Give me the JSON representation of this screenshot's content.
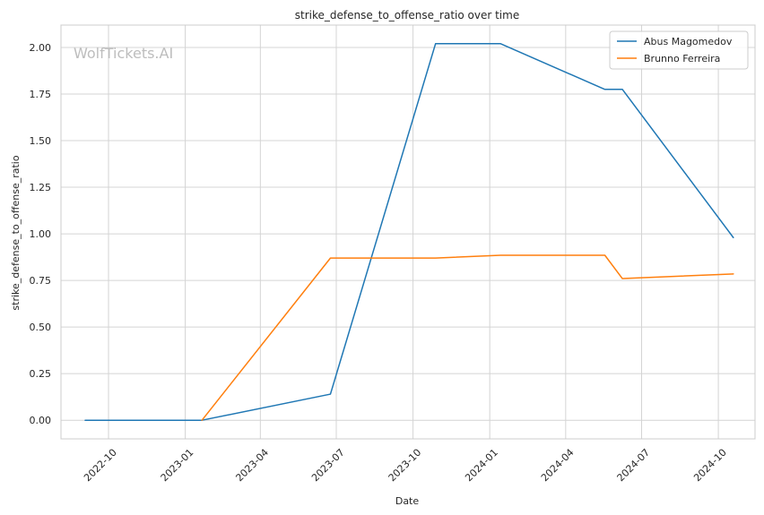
{
  "chart_data": {
    "type": "line",
    "title": "strike_defense_to_offense_ratio over time",
    "xlabel": "Date",
    "ylabel": "strike_defense_to_offense_ratio",
    "watermark": "WolfTickets.AI",
    "x_tick_labels": [
      "2022-10",
      "2023-01",
      "2023-04",
      "2023-07",
      "2023-10",
      "2024-01",
      "2024-04",
      "2024-07",
      "2024-10"
    ],
    "x_ticks": [
      "2022-10-01",
      "2023-01-01",
      "2023-04-01",
      "2023-07-01",
      "2023-10-01",
      "2024-01-01",
      "2024-04-01",
      "2024-07-01",
      "2024-10-01"
    ],
    "y_tick_labels": [
      "0.00",
      "0.25",
      "0.50",
      "0.75",
      "1.00",
      "1.25",
      "1.50",
      "1.75",
      "2.00"
    ],
    "y_ticks": [
      0,
      0.25,
      0.5,
      0.75,
      1.0,
      1.25,
      1.5,
      1.75,
      2.0
    ],
    "xlim": [
      "2022-08-05",
      "2024-11-14"
    ],
    "ylim": [
      -0.1,
      2.12
    ],
    "grid": true,
    "legend_position": "top-right",
    "series": [
      {
        "name": "Abus Magomedov",
        "color": "#1f77b4",
        "points": [
          {
            "x": "2022-09-03",
            "y": 0.0
          },
          {
            "x": "2023-01-21",
            "y": 0.0
          },
          {
            "x": "2023-06-24",
            "y": 0.14
          },
          {
            "x": "2023-10-28",
            "y": 2.02
          },
          {
            "x": "2024-01-14",
            "y": 2.02
          },
          {
            "x": "2024-05-18",
            "y": 1.775
          },
          {
            "x": "2024-06-08",
            "y": 1.775
          },
          {
            "x": "2024-10-19",
            "y": 0.98
          }
        ]
      },
      {
        "name": "Brunno Ferreira",
        "color": "#ff7f0e",
        "points": [
          {
            "x": "2023-01-21",
            "y": 0.0
          },
          {
            "x": "2023-06-24",
            "y": 0.87
          },
          {
            "x": "2023-10-28",
            "y": 0.87
          },
          {
            "x": "2024-01-14",
            "y": 0.885
          },
          {
            "x": "2024-05-18",
            "y": 0.885
          },
          {
            "x": "2024-06-08",
            "y": 0.76
          },
          {
            "x": "2024-10-19",
            "y": 0.785
          }
        ]
      }
    ]
  }
}
